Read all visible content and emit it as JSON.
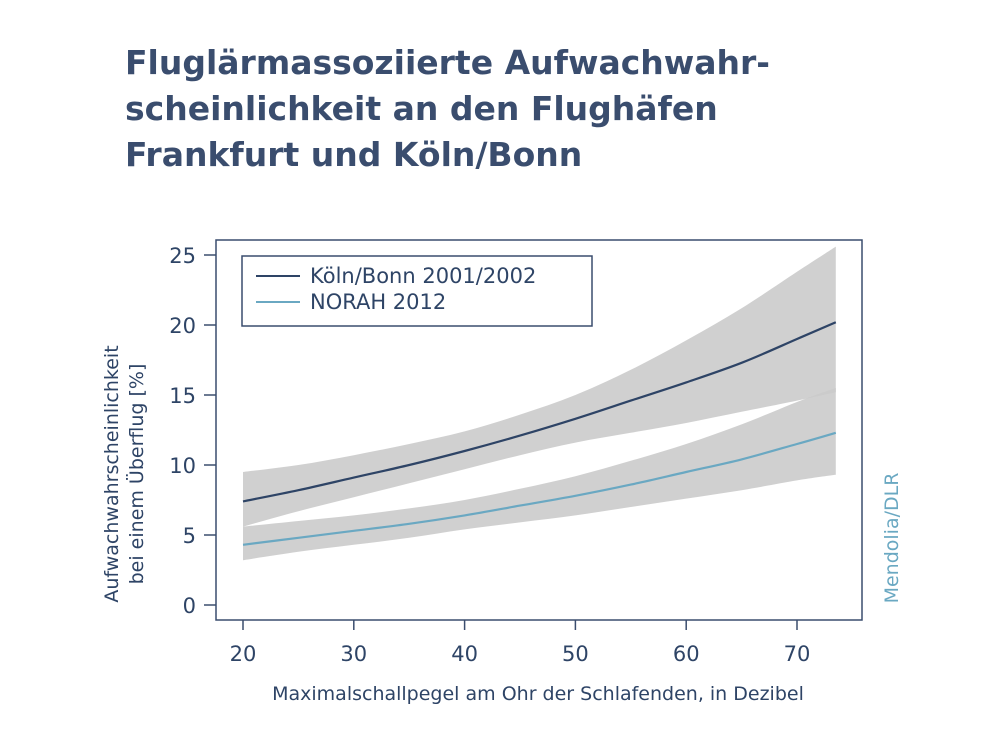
{
  "title_lines": [
    "Fluglärmassoziierte Aufwachwahr-",
    "scheinlichkeit an den Flughäfen",
    "Frankfurt und Köln/Bonn"
  ],
  "credit": "Mendolia/DLR",
  "chart_data": {
    "type": "line",
    "title": "Fluglärmassoziierte Aufwachwahrscheinlichkeit an den Flughäfen Frankfurt und Köln/Bonn",
    "xlabel": "Maximalschallpegel am Ohr der Schlafenden, in Dezibel",
    "ylabel_lines": [
      "Aufwachwahrscheinlichkeit",
      "bei einem Überflug [%]"
    ],
    "xlim": [
      18,
      74
    ],
    "ylim": [
      0,
      25
    ],
    "xticks": [
      20,
      30,
      40,
      50,
      60,
      70
    ],
    "yticks": [
      0,
      5,
      10,
      15,
      20,
      25
    ],
    "grid": false,
    "legend_position": "top-left",
    "x": [
      20,
      25,
      30,
      35,
      40,
      45,
      50,
      55,
      60,
      65,
      70,
      73.5
    ],
    "series": [
      {
        "name": "Köln/Bonn 2001/2002",
        "color": "#2e4466",
        "values": [
          7.4,
          8.2,
          9.1,
          10.0,
          11.0,
          12.1,
          13.3,
          14.6,
          15.9,
          17.3,
          19.0,
          20.2
        ],
        "lower": [
          5.6,
          6.7,
          7.7,
          8.7,
          9.7,
          10.7,
          11.6,
          12.3,
          13.0,
          13.8,
          14.6,
          15.2
        ],
        "upper": [
          9.5,
          10.0,
          10.7,
          11.5,
          12.4,
          13.6,
          15.0,
          16.8,
          18.9,
          21.2,
          23.8,
          25.6
        ]
      },
      {
        "name": "NORAH 2012",
        "color": "#6aa8c2",
        "values": [
          4.3,
          4.8,
          5.3,
          5.8,
          6.4,
          7.1,
          7.8,
          8.6,
          9.5,
          10.4,
          11.5,
          12.3
        ],
        "lower": [
          3.2,
          3.8,
          4.3,
          4.8,
          5.4,
          5.9,
          6.4,
          7.0,
          7.6,
          8.2,
          8.9,
          9.3
        ],
        "upper": [
          5.6,
          6.0,
          6.4,
          6.9,
          7.5,
          8.3,
          9.2,
          10.3,
          11.5,
          12.9,
          14.5,
          15.5
        ]
      }
    ]
  }
}
